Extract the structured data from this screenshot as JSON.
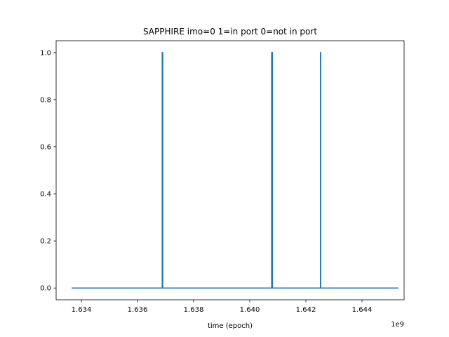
{
  "chart_data": {
    "type": "line",
    "title": "SAPPHIRE imo=0 1=in port 0=not in port",
    "xlabel": "time (epoch)",
    "ylabel": "",
    "x_offset_label": "1e9",
    "xlim": [
      1.6331,
      1.6455
    ],
    "ylim": [
      -0.05,
      1.05
    ],
    "x_ticks": [
      1.634,
      1.636,
      1.638,
      1.64,
      1.642,
      1.644
    ],
    "x_tick_labels": [
      "1.634",
      "1.636",
      "1.638",
      "1.640",
      "1.642",
      "1.644"
    ],
    "y_ticks": [
      0.0,
      0.2,
      0.4,
      0.6,
      0.8,
      1.0
    ],
    "y_tick_labels": [
      "0.0",
      "0.2",
      "0.4",
      "0.6",
      "0.8",
      "1.0"
    ],
    "grid": false,
    "series": [
      {
        "color": "#1f77b4",
        "x": [
          1.63365,
          1.63688,
          1.63688,
          1.6369,
          1.6369,
          1.64078,
          1.64078,
          1.64081,
          1.64081,
          1.64252,
          1.64252,
          1.64253,
          1.64253,
          1.6453
        ],
        "values": [
          0,
          0,
          1,
          1,
          0,
          0,
          1,
          1,
          0,
          0,
          1,
          1,
          0,
          0
        ]
      }
    ]
  }
}
